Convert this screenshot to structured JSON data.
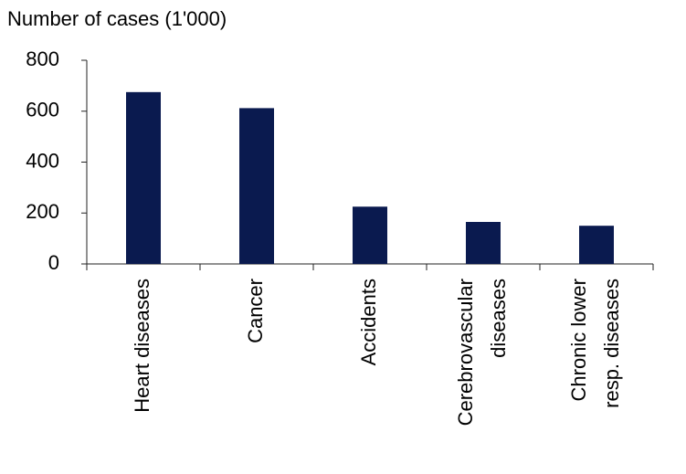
{
  "chart_data": {
    "type": "bar",
    "y_label": "Number of cases (1'000)",
    "categories": [
      [
        "Heart diseases"
      ],
      [
        "Cancer"
      ],
      [
        "Accidents"
      ],
      [
        "Cerebrovascular",
        "diseases"
      ],
      [
        "Chronic lower",
        "resp. diseases"
      ]
    ],
    "values": [
      675,
      612,
      225,
      165,
      150
    ],
    "color": "#0a1a4f",
    "ylim": [
      0,
      800
    ],
    "yticks": [
      0,
      200,
      400,
      600,
      800
    ],
    "grid": false
  }
}
